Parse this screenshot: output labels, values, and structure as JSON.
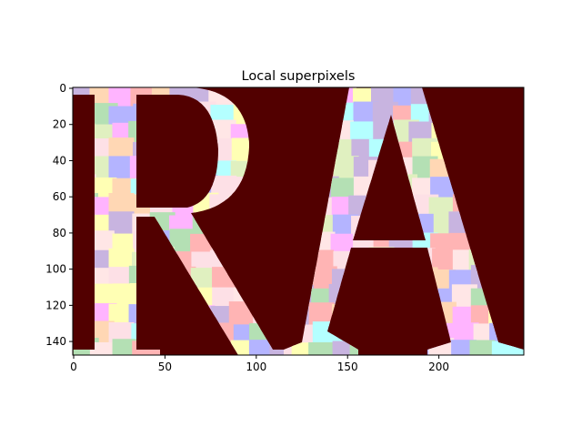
{
  "chart_data": {
    "type": "heatmap",
    "title": "Local superpixels",
    "xlabel": "",
    "ylabel": "",
    "xlim": [
      -0.5,
      246.5
    ],
    "ylim": [
      147.5,
      -0.5
    ],
    "x_ticks": [
      0,
      50,
      100,
      150,
      200
    ],
    "y_ticks": [
      0,
      20,
      40,
      60,
      80,
      100,
      120,
      140
    ],
    "grid": false,
    "legend": "none",
    "image_size": {
      "rows": 148,
      "cols": 247
    },
    "colors": {
      "background": "#520000",
      "palette": [
        "#fde0e6",
        "#c8b4e0",
        "#b4b4ff",
        "#b4e0b4",
        "#ffffb4",
        "#ffd7b4",
        "#ffb4ff",
        "#b4ffff",
        "#ffb4b4",
        "#e0f0c0",
        "#ffe6e6"
      ]
    },
    "letters": [
      "R",
      "A"
    ]
  }
}
